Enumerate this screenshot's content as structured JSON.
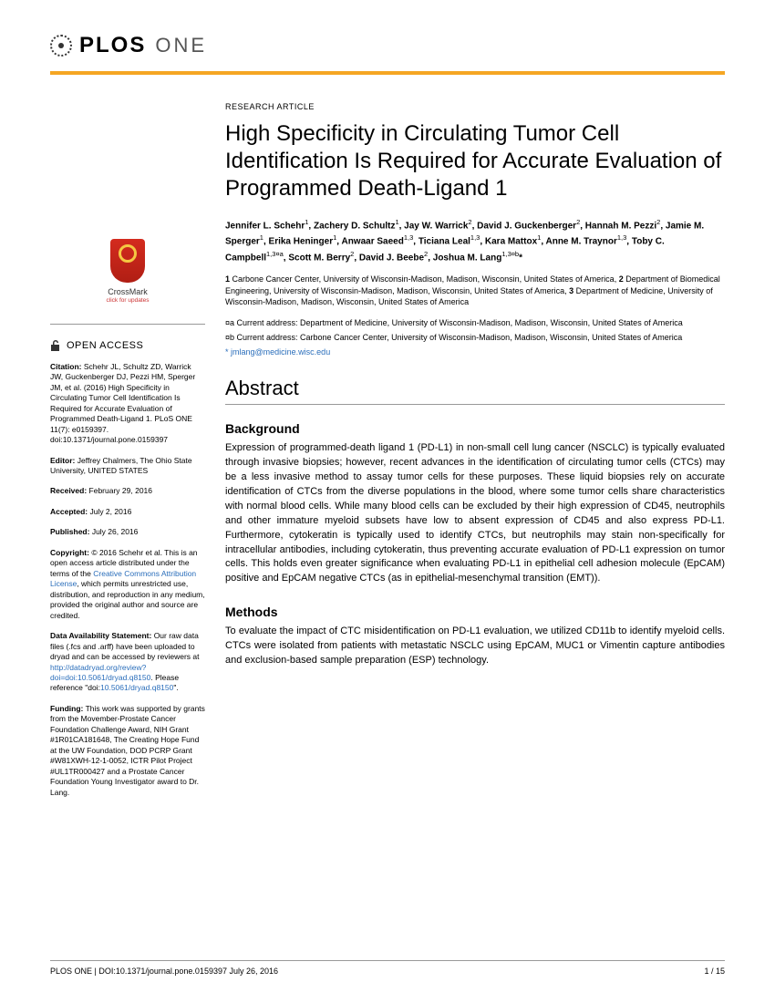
{
  "journal": {
    "brand": "PLOS",
    "sub": "ONE",
    "bar_color": "#f5a623"
  },
  "article": {
    "type": "RESEARCH ARTICLE",
    "title": "High Specificity in Circulating Tumor Cell Identification Is Required for Accurate Evaluation of Programmed Death-Ligand 1",
    "authors_html": "Jennifer L. Schehr<sup>1</sup>, Zachery D. Schultz<sup>1</sup>, Jay W. Warrick<sup>2</sup>, David J. Guckenberger<sup>2</sup>, Hannah M. Pezzi<sup>2</sup>, Jamie M. Sperger<sup>1</sup>, Erika Heninger<sup>1</sup>, Anwaar Saeed<sup>1,3</sup>, Ticiana Leal<sup>1,3</sup>, Kara Mattox<sup>1</sup>, Anne M. Traynor<sup>1,3</sup>, Toby C. Campbell<sup>1,3¤a</sup>, Scott M. Berry<sup>2</sup>, David J. Beebe<sup>2</sup>, Joshua M. Lang<sup>1,3¤b</sup>*",
    "affiliations_html": "<b>1</b> Carbone Cancer Center, University of Wisconsin-Madison, Madison, Wisconsin, United States of America, <b>2</b> Department of Biomedical Engineering, University of Wisconsin-Madison, Madison, Wisconsin, United States of America, <b>3</b> Department of Medicine, University of Wisconsin-Madison, Madison, Wisconsin, United States of America",
    "addr_a": "¤a  Current address: Department of Medicine, University of Wisconsin-Madison, Madison, Wisconsin, United States of America",
    "addr_b": "¤b  Current address: Carbone Cancer Center, University of Wisconsin-Madison, Madison, Wisconsin, United States of America",
    "email_prefix": "* ",
    "email": "jmlang@medicine.wisc.edu"
  },
  "crossmark": {
    "label": "CrossMark",
    "sub": "click for updates"
  },
  "sidebar": {
    "open_access": "OPEN ACCESS",
    "citation_label": "Citation:",
    "citation": " Schehr JL, Schultz ZD, Warrick JW, Guckenberger DJ, Pezzi HM, Sperger JM, et al. (2016) High Specificity in Circulating Tumor Cell Identification Is Required for Accurate Evaluation of Programmed Death-Ligand 1. PLoS ONE 11(7): e0159397. doi:10.1371/journal.pone.0159397",
    "editor_label": "Editor:",
    "editor": " Jeffrey Chalmers, The Ohio State University, UNITED STATES",
    "received_label": "Received:",
    "received": " February 29, 2016",
    "accepted_label": "Accepted:",
    "accepted": " July 2, 2016",
    "published_label": "Published:",
    "published": " July 26, 2016",
    "copyright_label": "Copyright:",
    "copyright_pre": " © 2016 Schehr et al. This is an open access article distributed under the terms of the ",
    "cc_link": "Creative Commons Attribution License",
    "copyright_post": ", which permits unrestricted use, distribution, and reproduction in any medium, provided the original author and source are credited.",
    "data_label": "Data Availability Statement:",
    "data_pre": " Our raw data files (.fcs and .arff) have been uploaded to dryad and can be accessed by reviewers at ",
    "data_link1": "http://datadryad.org/review?doi=doi:10.5061/dryad.q8150",
    "data_mid": ". Please reference \"doi:",
    "data_link2": "10.5061/dryad.q8150",
    "data_end": "\".",
    "funding_label": "Funding:",
    "funding": " This work was supported by grants from the Movember-Prostate Cancer Foundation Challenge Award, NIH Grant #1R01CA181648, The Creating Hope Fund at the UW Foundation, DOD PCRP Grant #W81XWH-12-1-0052, ICTR Pilot Project #UL1TR000427 and a Prostate Cancer Foundation Young Investigator award to Dr. Lang."
  },
  "abstract": {
    "heading": "Abstract",
    "background_head": "Background",
    "background": "Expression of programmed-death ligand 1 (PD-L1) in non-small cell lung cancer (NSCLC) is typically evaluated through invasive biopsies; however, recent advances in the identification of circulating tumor cells (CTCs) may be a less invasive method to assay tumor cells for these purposes. These liquid biopsies rely on accurate identification of CTCs from the diverse populations in the blood, where some tumor cells share characteristics with normal blood cells. While many blood cells can be excluded by their high expression of CD45, neutrophils and other immature myeloid subsets have low to absent expression of CD45 and also express PD-L1. Furthermore, cytokeratin is typically used to identify CTCs, but neutrophils may stain non-specifically for intracellular antibodies, including cytokeratin, thus preventing accurate evaluation of PD-L1 expression on tumor cells. This holds even greater significance when evaluating PD-L1 in epithelial cell adhesion molecule (EpCAM) positive and EpCAM negative CTCs (as in epithelial-mesenchymal transition (EMT)).",
    "methods_head": "Methods",
    "methods": "To evaluate the impact of CTC misidentification on PD-L1 evaluation, we utilized CD11b to identify myeloid cells. CTCs were isolated from patients with metastatic NSCLC using EpCAM, MUC1 or Vimentin capture antibodies and exclusion-based sample preparation (ESP) technology."
  },
  "footer": {
    "left": "PLOS ONE | DOI:10.1371/journal.pone.0159397    July 26, 2016",
    "right": "1 / 15"
  }
}
